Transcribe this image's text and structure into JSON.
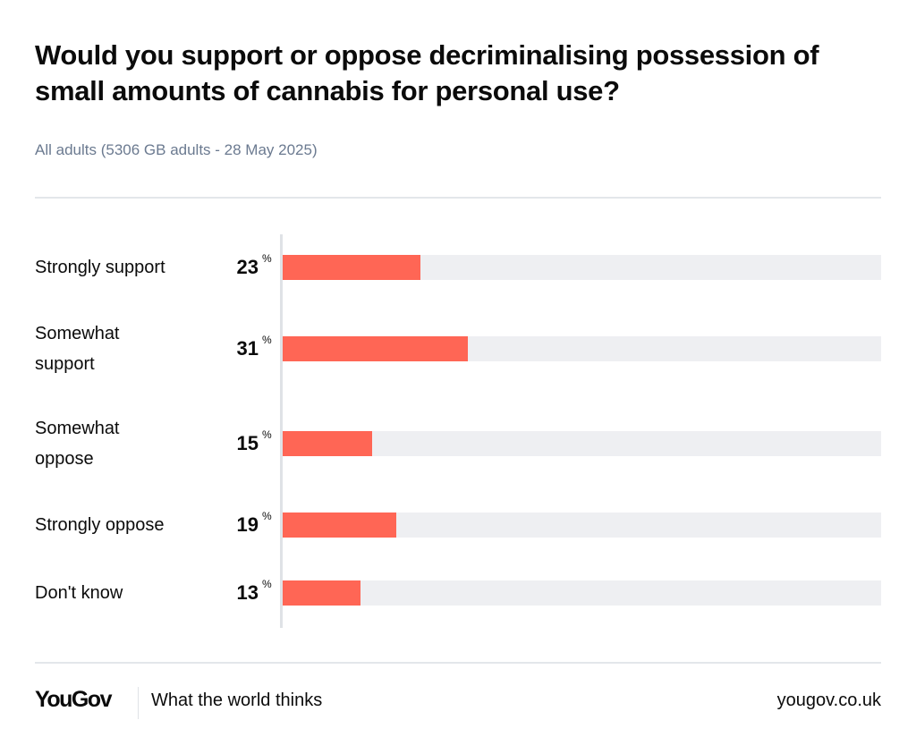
{
  "chart_data": {
    "type": "bar",
    "orientation": "horizontal",
    "title": "Would you support or oppose decriminalising possession of small amounts of cannabis for personal use?",
    "subtitle": "All adults (5306 GB adults - 28 May 2025)",
    "categories": [
      "Strongly support",
      "Somewhat support",
      "Somewhat oppose",
      "Strongly oppose",
      "Don't know"
    ],
    "values": [
      23,
      31,
      15,
      19,
      13
    ],
    "unit": "%",
    "xlim": [
      0,
      100
    ],
    "grid": false,
    "bar_color": "#ff6655",
    "track_color": "#eeeff2"
  },
  "footer": {
    "logo": "YouGov",
    "tagline": "What the world thinks",
    "url": "yougov.co.uk"
  }
}
